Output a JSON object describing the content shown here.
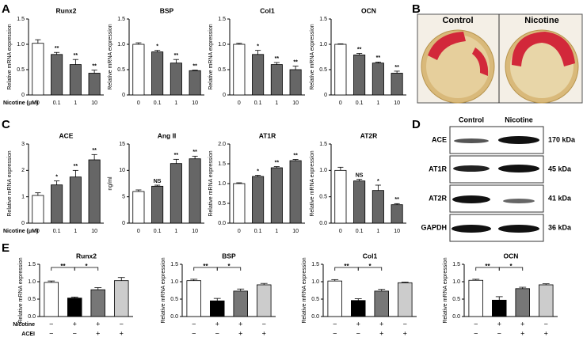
{
  "panel_labels": [
    "A",
    "B",
    "C",
    "D",
    "E"
  ],
  "culture": {
    "labels": [
      "Control",
      "Nicotine"
    ]
  },
  "blot": {
    "columns": [
      "Control",
      "Nicotine"
    ],
    "rows": [
      {
        "name": "ACE",
        "size": "170 kDa"
      },
      {
        "name": "AT1R",
        "size": "45 kDa"
      },
      {
        "name": "AT2R",
        "size": "41 kDa"
      },
      {
        "name": "GAPDH",
        "size": "36 kDa"
      }
    ]
  },
  "chart_data": [
    {
      "type": "bar",
      "title": "Runx2",
      "ylabel": "Relative mRNA expression",
      "xlabel": "Nicotine (μM)",
      "categories": [
        "0",
        "0.1",
        "1",
        "10"
      ],
      "values": [
        1.02,
        0.8,
        0.6,
        0.43
      ],
      "errors": [
        0.07,
        0.04,
        0.1,
        0.06
      ],
      "annotations": [
        null,
        "**",
        "**",
        "**"
      ],
      "colors": [
        "#ffffff",
        "#666666",
        "#666666",
        "#666666"
      ],
      "ylim": [
        0,
        1.5
      ],
      "yticks": [
        0,
        0.5,
        {
          "value": 1,
          "label": "1.0"
        },
        1.5
      ]
    },
    {
      "type": "bar",
      "title": "BSP",
      "ylabel": "Relative mRNA expression",
      "categories": [
        "0",
        "0.1",
        "1",
        "10"
      ],
      "values": [
        1.0,
        0.85,
        0.63,
        0.48
      ],
      "errors": [
        0.03,
        0.03,
        0.07,
        0.01
      ],
      "annotations": [
        null,
        "*",
        "**",
        "**"
      ],
      "colors": [
        "#ffffff",
        "#666666",
        "#666666",
        "#666666"
      ],
      "ylim": [
        0,
        1.5
      ],
      "yticks": [
        0,
        0.5,
        {
          "value": 1,
          "label": "1.0"
        },
        1.5
      ]
    },
    {
      "type": "bar",
      "title": "Col1",
      "ylabel": "Relative mRNA expression",
      "categories": [
        "0",
        "0.1",
        "1",
        "10"
      ],
      "values": [
        1.0,
        0.8,
        0.6,
        0.5
      ],
      "errors": [
        0.02,
        0.08,
        0.04,
        0.07
      ],
      "annotations": [
        null,
        "*",
        "**",
        "**"
      ],
      "colors": [
        "#ffffff",
        "#666666",
        "#666666",
        "#666666"
      ],
      "ylim": [
        0,
        1.5
      ],
      "yticks": [
        0,
        0.5,
        {
          "value": 1,
          "label": "1.0"
        },
        1.5
      ]
    },
    {
      "type": "bar",
      "title": "OCN",
      "ylabel": "Relative mRNA expression",
      "categories": [
        "0",
        "0.1",
        "1",
        "10"
      ],
      "values": [
        1.0,
        0.79,
        0.63,
        0.43
      ],
      "errors": [
        0.01,
        0.03,
        0.02,
        0.04
      ],
      "annotations": [
        null,
        "**",
        "**",
        "**"
      ],
      "colors": [
        "#ffffff",
        "#666666",
        "#666666",
        "#666666"
      ],
      "ylim": [
        0,
        1.5
      ],
      "yticks": [
        0,
        0.5,
        {
          "value": 1,
          "label": "1.0"
        },
        1.5
      ]
    },
    {
      "type": "bar",
      "title": "ACE",
      "ylabel": "Relative mRNA expression",
      "xlabel": "Nicotine (μM)",
      "categories": [
        "0",
        "0.1",
        "1",
        "10"
      ],
      "values": [
        1.05,
        1.45,
        1.75,
        2.4
      ],
      "errors": [
        0.1,
        0.15,
        0.25,
        0.2
      ],
      "annotations": [
        null,
        "*",
        "**",
        "**"
      ],
      "colors": [
        "#ffffff",
        "#666666",
        "#666666",
        "#666666"
      ],
      "ylim": [
        0,
        3
      ],
      "yticks": [
        0,
        1,
        2,
        3
      ]
    },
    {
      "type": "bar",
      "title": "Ang II",
      "ylabel": "ng/ml",
      "categories": [
        "0",
        "0.1",
        "1",
        "10"
      ],
      "values": [
        6,
        7,
        11.3,
        12.2
      ],
      "errors": [
        0.3,
        0.2,
        0.8,
        0.5
      ],
      "annotations": [
        null,
        "NS",
        "**",
        "**"
      ],
      "colors": [
        "#ffffff",
        "#666666",
        "#666666",
        "#666666"
      ],
      "ylim": [
        0,
        15
      ],
      "yticks": [
        0,
        5,
        10,
        15
      ]
    },
    {
      "type": "bar",
      "title": "AT1R",
      "ylabel": "Relative mRNA expression",
      "categories": [
        "0",
        "0.1",
        "1",
        "10"
      ],
      "values": [
        1.0,
        1.18,
        1.4,
        1.58
      ],
      "errors": [
        0.02,
        0.03,
        0.03,
        0.03
      ],
      "annotations": [
        null,
        "*",
        "**",
        "**"
      ],
      "colors": [
        "#ffffff",
        "#666666",
        "#666666",
        "#666666"
      ],
      "ylim": [
        0,
        2
      ],
      "yticks": [
        {
          "value": 0,
          "label": "0.0"
        },
        0.5,
        {
          "value": 1,
          "label": "1.0"
        },
        1.5,
        {
          "value": 2,
          "label": "2.0"
        }
      ]
    },
    {
      "type": "bar",
      "title": "AT2R",
      "ylabel": "Relative mRNA expression",
      "categories": [
        "0",
        "0.1",
        "1",
        "10"
      ],
      "values": [
        1.0,
        0.8,
        0.62,
        0.35
      ],
      "errors": [
        0.06,
        0.03,
        0.1,
        0.02
      ],
      "annotations": [
        null,
        "NS",
        "*",
        "**"
      ],
      "colors": [
        "#ffffff",
        "#666666",
        "#666666",
        "#666666"
      ],
      "ylim": [
        0,
        1.5
      ],
      "yticks": [
        {
          "value": 0,
          "label": "0.0"
        },
        0.5,
        {
          "value": 1,
          "label": "1.0"
        },
        1.5
      ]
    },
    {
      "type": "bar",
      "title": "Runx2",
      "ylabel": "Relative mRNA expression",
      "categories": [
        null,
        null,
        null,
        null
      ],
      "values": [
        0.98,
        0.53,
        0.77,
        1.03
      ],
      "errors": [
        0.04,
        0.03,
        0.06,
        0.09
      ],
      "colors": [
        "#ffffff",
        "#000000",
        "#777777",
        "#cccccc"
      ],
      "brackets": [
        {
          "label": "**"
        },
        {
          "label": "*"
        }
      ],
      "conditions": [
        {
          "name": "Nicotine",
          "signs": [
            "−",
            "+",
            "+",
            "−"
          ]
        },
        {
          "name": "ACEI",
          "signs": [
            "−",
            "−",
            "+",
            "+"
          ]
        }
      ],
      "ylim": [
        0,
        1.5
      ],
      "yticks": [
        {
          "value": 0,
          "label": "0.0"
        },
        0.5,
        {
          "value": 1,
          "label": "1.0"
        },
        1.5
      ]
    },
    {
      "type": "bar",
      "title": "BSP",
      "ylabel": "Relative mRNA expression",
      "categories": [
        null,
        null,
        null,
        null
      ],
      "values": [
        1.03,
        0.45,
        0.73,
        0.91
      ],
      "errors": [
        0.04,
        0.07,
        0.06,
        0.04
      ],
      "colors": [
        "#ffffff",
        "#000000",
        "#777777",
        "#cccccc"
      ],
      "brackets": [
        {
          "label": "**"
        },
        {
          "label": "*"
        }
      ],
      "conditions": [
        {
          "signs": [
            "−",
            "+",
            "+",
            "−"
          ]
        },
        {
          "signs": [
            "−",
            "−",
            "+",
            "+"
          ]
        }
      ],
      "ylim": [
        0,
        1.5
      ],
      "yticks": [
        {
          "value": 0,
          "label": "0.0"
        },
        0.5,
        {
          "value": 1,
          "label": "1.0"
        },
        1.5
      ]
    },
    {
      "type": "bar",
      "title": "Col1",
      "ylabel": "Relative mRNA expression",
      "categories": [
        null,
        null,
        null,
        null
      ],
      "values": [
        1.02,
        0.46,
        0.73,
        0.97
      ],
      "errors": [
        0.04,
        0.05,
        0.05,
        0.02
      ],
      "colors": [
        "#ffffff",
        "#000000",
        "#777777",
        "#cccccc"
      ],
      "brackets": [
        {
          "label": "**"
        },
        {
          "label": "*"
        }
      ],
      "conditions": [
        {
          "signs": [
            "−",
            "+",
            "+",
            "−"
          ]
        },
        {
          "signs": [
            "−",
            "−",
            "+",
            "+"
          ]
        }
      ],
      "ylim": [
        0,
        1.5
      ],
      "yticks": [
        {
          "value": 0,
          "label": "0.0"
        },
        0.5,
        {
          "value": 1,
          "label": "1.0"
        },
        1.5
      ]
    },
    {
      "type": "bar",
      "title": "OCN",
      "ylabel": "Relative mRNA expression",
      "categories": [
        null,
        null,
        null,
        null
      ],
      "values": [
        1.04,
        0.47,
        0.8,
        0.91
      ],
      "errors": [
        0.03,
        0.1,
        0.04,
        0.03
      ],
      "colors": [
        "#ffffff",
        "#000000",
        "#777777",
        "#cccccc"
      ],
      "brackets": [
        {
          "label": "**"
        },
        {
          "label": "*"
        }
      ],
      "conditions": [
        {
          "signs": [
            "−",
            "+",
            "+",
            "−"
          ]
        },
        {
          "signs": [
            "−",
            "−",
            "+",
            "+"
          ]
        }
      ],
      "ylim": [
        0,
        1.5
      ],
      "yticks": [
        {
          "value": 0,
          "label": "0.0"
        },
        0.5,
        {
          "value": 1,
          "label": "1.0"
        },
        1.5
      ]
    }
  ]
}
